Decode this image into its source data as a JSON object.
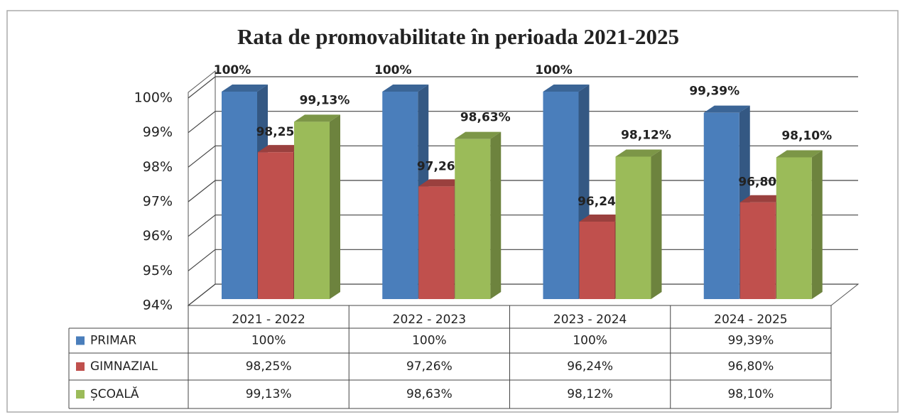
{
  "chart_data": {
    "type": "bar3d",
    "title": "Rata de promovabilitate în perioada 2021-2025",
    "categories": [
      "2021 - 2022",
      "2022 - 2023",
      "2023 - 2024",
      "2024 - 2025"
    ],
    "series": [
      {
        "name": "PRIMAR",
        "color": "#4a7ebb",
        "values": [
          100,
          100,
          100,
          99.39
        ],
        "value_labels": [
          "100%",
          "100%",
          "100%",
          "99,39%"
        ]
      },
      {
        "name": "GIMNAZIAL",
        "color": "#c0504d",
        "values": [
          98.25,
          97.26,
          96.24,
          96.8
        ],
        "value_labels": [
          "98,25%",
          "97,26%",
          "96,24%",
          "96,80%"
        ]
      },
      {
        "name": "ȘCOALĂ",
        "color": "#9bbb59",
        "values": [
          99.13,
          98.63,
          98.12,
          98.1
        ],
        "value_labels": [
          "99,13%",
          "98,63%",
          "98,12%",
          "98,10%"
        ]
      }
    ],
    "ylim": [
      94,
      100
    ],
    "yticks": [
      {
        "value": 94,
        "label": "94%"
      },
      {
        "value": 95,
        "label": "95%"
      },
      {
        "value": 96,
        "label": "96%"
      },
      {
        "value": 97,
        "label": "97%"
      },
      {
        "value": 98,
        "label": "98%"
      },
      {
        "value": 99,
        "label": "99%"
      },
      {
        "value": 100,
        "label": "100%"
      }
    ],
    "grid": true,
    "data_table": true
  }
}
